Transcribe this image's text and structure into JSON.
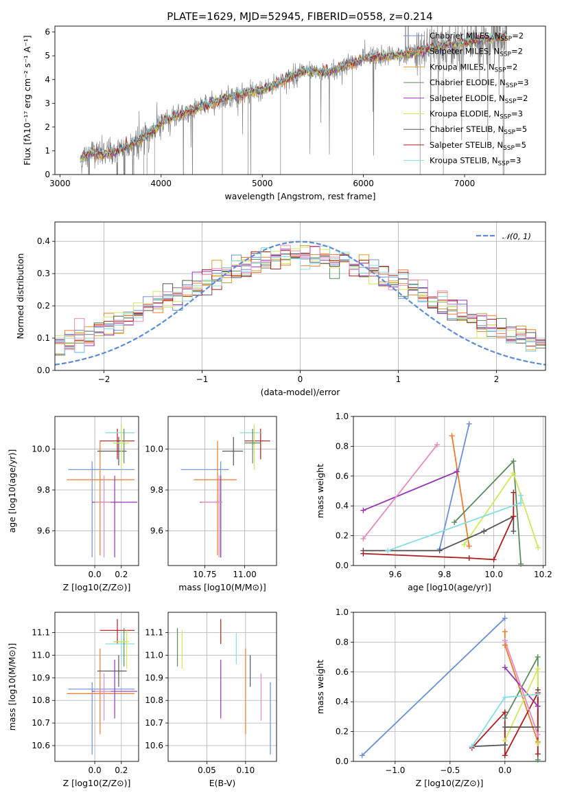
{
  "colors": {
    "Chabrier MILES": "#6b8fd6",
    "Salpeter MILES": "#ee7a2c",
    "Kroupa MILES": "#d4a030",
    "Chabrier ELODIE": "#5a8a5e",
    "Salpeter ELODIE": "#9433b5",
    "Kroupa ELODIE": "#cfe85a",
    "Chabrier STELIB": "#555555",
    "Salpeter STELIB": "#b01c1c",
    "Kroupa STELIB": "#84dde3",
    "pink": "#e58ac0",
    "gauss": "#5b8bd6",
    "data": "#808080",
    "grid": "#b0b0b0"
  },
  "chart_data": [
    {
      "id": "spectrum",
      "type": "line",
      "title": "PLATE=1629, MJD=52945, FIBERID=0558, z=0.214",
      "xlabel": "wavelength [Angstrom, rest frame]",
      "ylabel": "Flux [fλ10⁻¹⁷ erg cm⁻² s⁻¹ A⁻¹]",
      "xlim": [
        2950,
        7800
      ],
      "ylim": [
        0,
        6.25
      ],
      "xticks": [
        3000,
        4000,
        5000,
        6000,
        7000
      ],
      "yticks": [
        0,
        1,
        2,
        3,
        4,
        5,
        6
      ],
      "grid": false,
      "legend_position": "top-right",
      "continuum": {
        "x": [
          3200,
          3300,
          3450,
          3550,
          3700,
          3900,
          4000,
          4150,
          4300,
          4500,
          4700,
          5000,
          5200,
          5400,
          5600,
          5800,
          6000,
          6200,
          6400,
          6600,
          6800,
          7000,
          7200,
          7400
        ],
        "y": [
          0.65,
          0.92,
          0.85,
          0.95,
          1.25,
          1.75,
          2.2,
          2.45,
          2.7,
          3.0,
          3.3,
          3.55,
          3.95,
          4.35,
          4.3,
          4.5,
          4.9,
          4.95,
          5.05,
          5.25,
          5.45,
          5.55,
          5.7,
          5.8
        ]
      },
      "legend": [
        {
          "name": "Chabrier MILES, N",
          "sub": "SSP",
          "suffix": "=2"
        },
        {
          "name": "Salpeter MILES, N",
          "sub": "SSP",
          "suffix": "=2"
        },
        {
          "name": "Kroupa MILES, N",
          "sub": "SSP",
          "suffix": "=2"
        },
        {
          "name": "Chabrier ELODIE, N",
          "sub": "SSP",
          "suffix": "=3"
        },
        {
          "name": "Salpeter ELODIE, N",
          "sub": "SSP",
          "suffix": "=2"
        },
        {
          "name": "Kroupa ELODIE, N",
          "sub": "SSP",
          "suffix": "=3"
        },
        {
          "name": "Chabrier STELIB, N",
          "sub": "SSP",
          "suffix": "=5"
        },
        {
          "name": "Salpeter STELIB, N",
          "sub": "SSP",
          "suffix": "=5"
        },
        {
          "name": "Kroupa STELIB, N",
          "sub": "SSP",
          "suffix": "=3"
        }
      ]
    },
    {
      "id": "residuals",
      "type": "line",
      "xlabel": "(data-model)/error",
      "ylabel": "Normed distribution",
      "xlim": [
        -2.5,
        2.5
      ],
      "ylim": [
        0,
        0.46
      ],
      "xticks": [
        -2,
        -1,
        0,
        1,
        2
      ],
      "yticks": [
        0.0,
        0.1,
        0.2,
        0.3,
        0.4
      ],
      "grid": true,
      "legend": [
        "𝒩(0, 1)"
      ],
      "legend_position": "top-right",
      "gaussian": {
        "mean": 0,
        "sigma": 1
      }
    },
    {
      "id": "age_vs_Z",
      "type": "scatter",
      "xlabel": "Z [log10(Z/Z⊙)]",
      "ylabel": "age  [log10(age/yr)]",
      "xlim": [
        -0.3,
        0.33
      ],
      "ylim": [
        9.43,
        10.16
      ],
      "xticks": [
        0.0,
        0.2
      ],
      "yticks": [
        9.6,
        9.8,
        10.0
      ],
      "grid": true
    },
    {
      "id": "age_vs_mass",
      "type": "scatter",
      "xlabel": "mass [log10(M/M⊙)]",
      "ylabel": "",
      "xlim": [
        10.52,
        11.2
      ],
      "ylim": [
        9.43,
        10.16
      ],
      "xticks": [
        10.75,
        11.0
      ],
      "yticks": [
        9.6,
        9.8,
        10.0
      ],
      "grid": true
    },
    {
      "id": "weight_vs_age",
      "type": "line",
      "xlabel": "age  [log10(age/yr)]",
      "ylabel": "mass weight",
      "xlim": [
        9.43,
        10.21
      ],
      "ylim": [
        0,
        1.0
      ],
      "xticks": [
        9.6,
        9.8,
        10.0,
        10.2
      ],
      "yticks": [
        0.0,
        0.2,
        0.4,
        0.6,
        0.8,
        1.0
      ],
      "grid": true,
      "series": [
        {
          "color": "Chabrier MILES",
          "x": [
            9.78,
            9.9
          ],
          "y": [
            0.11,
            0.95
          ]
        },
        {
          "color": "Salpeter MILES",
          "x": [
            9.83,
            9.9
          ],
          "y": [
            0.87,
            0.13
          ]
        },
        {
          "color": "Chabrier ELODIE",
          "x": [
            9.84,
            10.08,
            10.11
          ],
          "y": [
            0.29,
            0.7,
            0.01
          ]
        },
        {
          "color": "Salpeter ELODIE",
          "x": [
            9.47,
            9.85
          ],
          "y": [
            0.37,
            0.63
          ]
        },
        {
          "color": "Kroupa ELODIE",
          "x": [
            9.88,
            10.08,
            10.18
          ],
          "y": [
            0.14,
            0.62,
            0.12
          ]
        },
        {
          "color": "Chabrier STELIB",
          "x": [
            9.47,
            9.78,
            9.96,
            10.08,
            10.08
          ],
          "y": [
            0.1,
            0.1,
            0.23,
            0.33,
            0.23
          ]
        },
        {
          "color": "Salpeter STELIB",
          "x": [
            9.47,
            9.9,
            10.0,
            10.08,
            10.08
          ],
          "y": [
            0.08,
            0.05,
            0.04,
            0.33,
            0.49
          ]
        },
        {
          "color": "Kroupa STELIB",
          "x": [
            9.57,
            10.11,
            10.11
          ],
          "y": [
            0.1,
            0.42,
            0.47
          ]
        },
        {
          "color": "pink",
          "x": [
            9.47,
            9.77
          ],
          "y": [
            0.18,
            0.81
          ]
        }
      ]
    },
    {
      "id": "mass_vs_Z",
      "type": "scatter",
      "xlabel": "Z [log10(Z/Z⊙)]",
      "ylabel": "mass [log10(M/M⊙)]",
      "xlim": [
        -0.3,
        0.33
      ],
      "ylim": [
        10.53,
        11.19
      ],
      "xticks": [
        0.0,
        0.2
      ],
      "yticks": [
        10.6,
        10.7,
        10.8,
        10.9,
        11.0,
        11.1
      ],
      "grid": true
    },
    {
      "id": "mass_vs_ebv",
      "type": "scatter",
      "xlabel": "E(B-V)",
      "ylabel": "",
      "xlim": [
        0.0,
        0.14
      ],
      "ylim": [
        10.53,
        11.19
      ],
      "xticks": [
        0.05,
        0.1
      ],
      "yticks": [
        10.6,
        10.7,
        10.8,
        10.9,
        11.0,
        11.1
      ],
      "grid": true,
      "series": [
        {
          "color": "Chabrier MILES",
          "x": 0.132,
          "y": [
            10.56,
            10.88
          ]
        },
        {
          "color": "Salpeter MILES",
          "x": 0.1,
          "y": [
            10.65,
            11.03
          ]
        },
        {
          "color": "Chabrier ELODIE",
          "x": 0.012,
          "y": [
            10.95,
            11.12
          ]
        },
        {
          "color": "Salpeter ELODIE",
          "x": 0.068,
          "y": [
            10.72,
            10.98
          ]
        },
        {
          "color": "Kroupa ELODIE",
          "x": 0.018,
          "y": [
            10.94,
            11.11
          ]
        },
        {
          "color": "Chabrier STELIB",
          "x": 0.106,
          "y": [
            10.86,
            11.0
          ]
        },
        {
          "color": "Salpeter STELIB",
          "x": 0.068,
          "y": [
            11.05,
            11.16
          ]
        },
        {
          "color": "Kroupa STELIB",
          "x": 0.088,
          "y": [
            10.96,
            11.1
          ]
        },
        {
          "color": "pink",
          "x": 0.12,
          "y": [
            10.71,
            10.92
          ]
        }
      ]
    },
    {
      "id": "weight_vs_Z",
      "type": "line",
      "xlabel": "Z [log10(Z/Z⊙)]",
      "ylabel": "mass weight",
      "xlim": [
        -1.38,
        0.37
      ],
      "ylim": [
        0,
        1.0
      ],
      "xticks": [
        -1.0,
        -0.5,
        0.0
      ],
      "yticks": [
        0.0,
        0.2,
        0.4,
        0.6,
        0.8,
        1.0
      ],
      "grid": true,
      "series": [
        {
          "color": "Chabrier MILES",
          "x": [
            -1.3,
            0.0
          ],
          "y": [
            0.04,
            0.96
          ]
        },
        {
          "color": "Salpeter MILES",
          "x": [
            0.0,
            0.0,
            0.3
          ],
          "y": [
            0.87,
            0.78,
            0.13
          ]
        },
        {
          "color": "Chabrier ELODIE",
          "x": [
            0.0,
            0.3,
            0.3
          ],
          "y": [
            0.29,
            0.7,
            0.01
          ]
        },
        {
          "color": "Salpeter ELODIE",
          "x": [
            0.0,
            0.3
          ],
          "y": [
            0.63,
            0.37
          ]
        },
        {
          "color": "Kroupa ELODIE",
          "x": [
            0.0,
            0.3,
            0.3
          ],
          "y": [
            0.14,
            0.62,
            0.12
          ]
        },
        {
          "color": "Chabrier STELIB",
          "x": [
            -0.3,
            0.0,
            0.0,
            0.3,
            0.3
          ],
          "y": [
            0.1,
            0.11,
            0.23,
            0.23,
            0.48
          ]
        },
        {
          "color": "Salpeter STELIB",
          "x": [
            -0.3,
            0.0,
            0.0,
            0.3,
            0.3
          ],
          "y": [
            0.09,
            0.33,
            0.04,
            0.46,
            0.05
          ]
        },
        {
          "color": "Kroupa STELIB",
          "x": [
            -0.3,
            0.0,
            0.3
          ],
          "y": [
            0.1,
            0.43,
            0.45
          ]
        },
        {
          "color": "pink",
          "x": [
            0.0,
            0.3
          ],
          "y": [
            0.81,
            0.18
          ]
        }
      ]
    }
  ]
}
